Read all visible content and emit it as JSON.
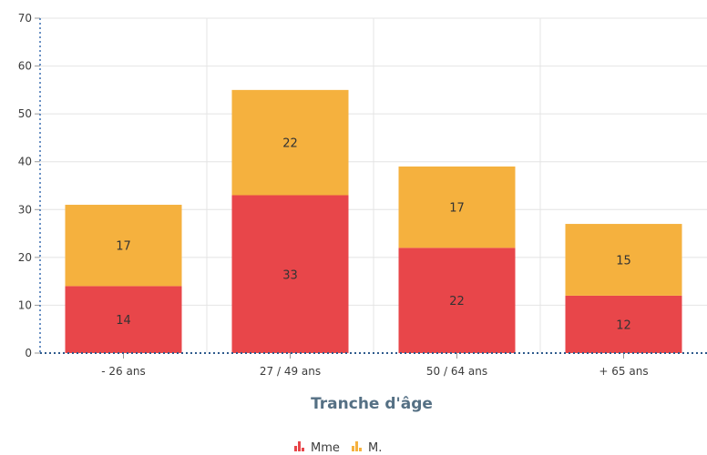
{
  "chart_data": {
    "type": "bar",
    "stacked": true,
    "categories": [
      "- 26 ans",
      "27 / 49 ans",
      "50 / 64 ans",
      "+ 65 ans"
    ],
    "series": [
      {
        "name": "Mme",
        "values": [
          14,
          33,
          22,
          12
        ],
        "color": "#e8464a"
      },
      {
        "name": "M.",
        "values": [
          17,
          22,
          17,
          15
        ],
        "color": "#f5b13e"
      }
    ],
    "xlabel": "Tranche d'âge",
    "ylabel": "",
    "ylim": [
      0,
      70
    ],
    "yticks": [
      0,
      10,
      20,
      30,
      40,
      50,
      60,
      70
    ],
    "grid": true,
    "legend_position": "bottom",
    "legend_icon": "bar-chart-icon"
  }
}
